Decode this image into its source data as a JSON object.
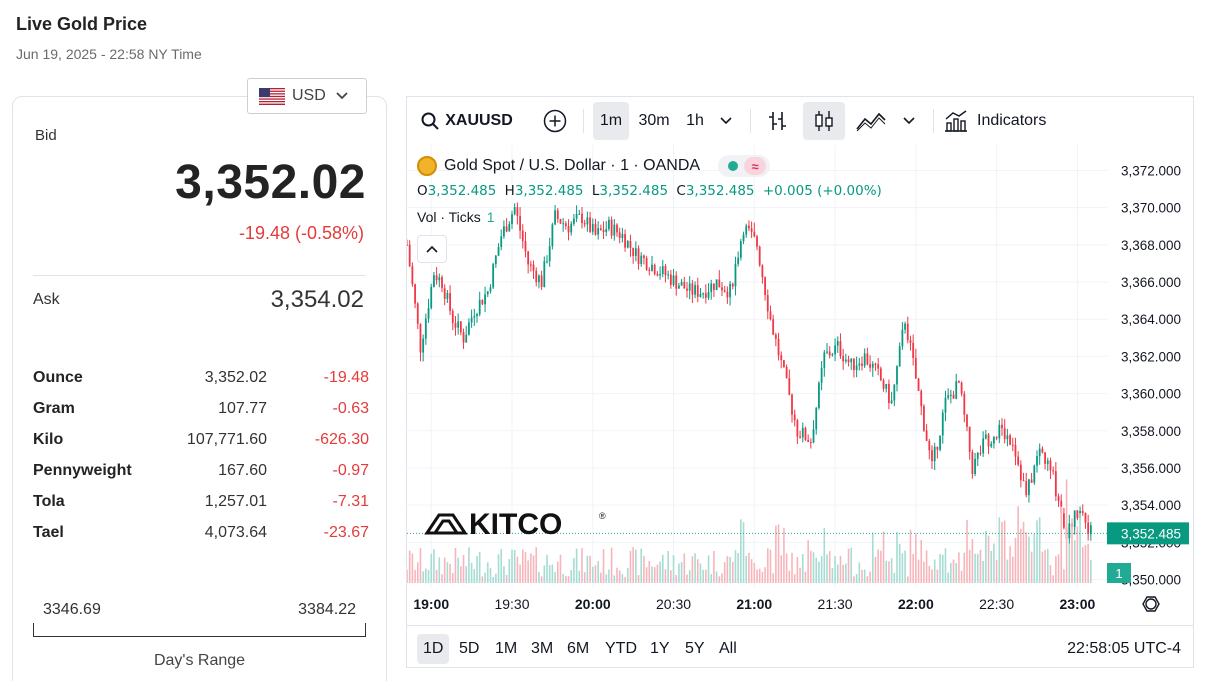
{
  "header": {
    "title": "Live Gold Price",
    "datetime": "Jun 19, 2025 - 22:58 NY Time"
  },
  "currency": {
    "selected": "USD",
    "icon": "us-flag-icon"
  },
  "quote": {
    "bid_label": "Bid",
    "bid": "3,352.02",
    "change": "-19.48 (-0.58%)",
    "ask_label": "Ask",
    "ask": "3,354.02",
    "change_color": "#e53b3b"
  },
  "units": [
    {
      "name": "Ounce",
      "price": "3,352.02",
      "change": "-19.48"
    },
    {
      "name": "Gram",
      "price": "107.77",
      "change": "-0.63"
    },
    {
      "name": "Kilo",
      "price": "107,771.60",
      "change": "-626.30"
    },
    {
      "name": "Pennyweight",
      "price": "167.60",
      "change": "-0.97"
    },
    {
      "name": "Tola",
      "price": "1,257.01",
      "change": "-7.31"
    },
    {
      "name": "Tael",
      "price": "4,073.64",
      "change": "-23.67"
    }
  ],
  "day_range": {
    "low": "3346.69",
    "high": "3384.22",
    "label": "Day's Range"
  },
  "toolbar": {
    "symbol": "XAUUSD",
    "intervals": [
      "1m",
      "30m",
      "1h"
    ],
    "active_interval": "1m",
    "indicators_label": "Indicators"
  },
  "legend": {
    "title": "Gold Spot / U.S. Dollar · 1 · OANDA",
    "ohlc": {
      "o_label": "O",
      "o": "3,352.485",
      "h_label": "H",
      "h": "3,352.485",
      "l_label": "L",
      "l": "3,352.485",
      "c_label": "C",
      "c": "3,352.485",
      "chg": "+0.005 (+0.00%)"
    },
    "vol_label": "Vol · Ticks",
    "vol_value": "1"
  },
  "watermark": "KITCO",
  "bottom": {
    "ranges": [
      "1D",
      "5D",
      "1M",
      "3M",
      "6M",
      "YTD",
      "1Y",
      "5Y",
      "All"
    ],
    "active_range": "1D",
    "clock": "22:58:05 UTC-4"
  },
  "colors": {
    "up": "#089981",
    "down": "#f23645",
    "up_vol": "#a6dcd2",
    "down_vol": "#f7b5bb"
  },
  "chart_data": {
    "type": "candlestick",
    "symbol": "XAUUSD",
    "interval": "1m",
    "y_ticks": [
      "3,372.000",
      "3,370.000",
      "3,368.000",
      "3,366.000",
      "3,364.000",
      "3,362.000",
      "3,360.000",
      "3,358.000",
      "3,356.000",
      "3,354.000",
      "3,352.000",
      "3,350.000"
    ],
    "y_tick_values": [
      3372,
      3370,
      3368,
      3366,
      3364,
      3362,
      3360,
      3358,
      3356,
      3354,
      3352,
      3350
    ],
    "ylim": [
      3349.6,
      3372.4
    ],
    "x_ticks": [
      "19:00",
      "19:30",
      "20:00",
      "20:30",
      "21:00",
      "21:30",
      "22:00",
      "22:30",
      "23:00"
    ],
    "x_tick_minutes": [
      1140,
      1170,
      1200,
      1230,
      1260,
      1290,
      1320,
      1350,
      1380
    ],
    "x_range_minutes": [
      1131,
      1391
    ],
    "last_price": "3,352.485",
    "last_value": 3352.485,
    "volume_badge": "1",
    "key_closes": [
      {
        "t": 1131,
        "v": 3368
      },
      {
        "t": 1136,
        "v": 3362.5
      },
      {
        "t": 1141,
        "v": 3366.5
      },
      {
        "t": 1144,
        "v": 3366
      },
      {
        "t": 1148,
        "v": 3364
      },
      {
        "t": 1152,
        "v": 3363
      },
      {
        "t": 1156,
        "v": 3364.5
      },
      {
        "t": 1161,
        "v": 3365.5
      },
      {
        "t": 1166,
        "v": 3368.5
      },
      {
        "t": 1171,
        "v": 3370
      },
      {
        "t": 1176,
        "v": 3367
      },
      {
        "t": 1181,
        "v": 3366
      },
      {
        "t": 1186,
        "v": 3369.5
      },
      {
        "t": 1191,
        "v": 3369
      },
      {
        "t": 1196,
        "v": 3369.5
      },
      {
        "t": 1201,
        "v": 3368.5
      },
      {
        "t": 1206,
        "v": 3369
      },
      {
        "t": 1211,
        "v": 3368.5
      },
      {
        "t": 1216,
        "v": 3367.5
      },
      {
        "t": 1221,
        "v": 3367
      },
      {
        "t": 1226,
        "v": 3366.5
      },
      {
        "t": 1231,
        "v": 3366
      },
      {
        "t": 1236,
        "v": 3365.5
      },
      {
        "t": 1241,
        "v": 3365.5
      },
      {
        "t": 1246,
        "v": 3366
      },
      {
        "t": 1251,
        "v": 3365.5
      },
      {
        "t": 1256,
        "v": 3369
      },
      {
        "t": 1261,
        "v": 3368
      },
      {
        "t": 1266,
        "v": 3364
      },
      {
        "t": 1271,
        "v": 3361
      },
      {
        "t": 1276,
        "v": 3358
      },
      {
        "t": 1281,
        "v": 3357.5
      },
      {
        "t": 1286,
        "v": 3362
      },
      {
        "t": 1291,
        "v": 3362.5
      },
      {
        "t": 1296,
        "v": 3361.5
      },
      {
        "t": 1301,
        "v": 3362
      },
      {
        "t": 1306,
        "v": 3361
      },
      {
        "t": 1311,
        "v": 3359.5
      },
      {
        "t": 1316,
        "v": 3364
      },
      {
        "t": 1321,
        "v": 3360
      },
      {
        "t": 1326,
        "v": 3356
      },
      {
        "t": 1331,
        "v": 3359.5
      },
      {
        "t": 1336,
        "v": 3360.5
      },
      {
        "t": 1341,
        "v": 3356
      },
      {
        "t": 1346,
        "v": 3357.5
      },
      {
        "t": 1351,
        "v": 3358
      },
      {
        "t": 1356,
        "v": 3357.5
      },
      {
        "t": 1361,
        "v": 3354.5
      },
      {
        "t": 1366,
        "v": 3357
      },
      {
        "t": 1371,
        "v": 3355.5
      },
      {
        "t": 1376,
        "v": 3352.5
      },
      {
        "t": 1381,
        "v": 3354
      },
      {
        "t": 1385,
        "v": 3352.5
      }
    ]
  }
}
